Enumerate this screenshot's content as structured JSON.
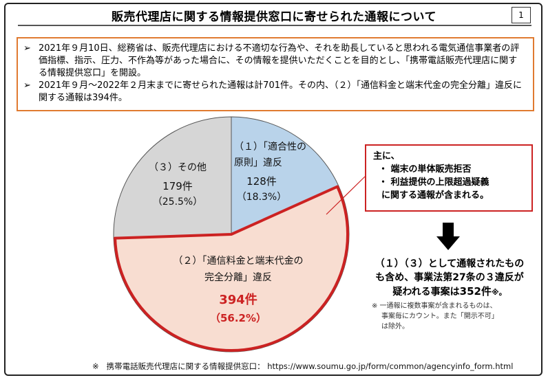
{
  "title": "販売代理店に関する情報提供窓口に寄せられた通報について",
  "page_number": "1",
  "summary": {
    "bullet_marker": "➢",
    "bullets": [
      "2021年９月10日、総務省は、販売代理店における不適切な行為や、それを助長していると思われる電気通信事業者の評価指標、指示、圧力、不作為等があった場合に、その情報を提供いただくことを目的とし、「携帯電話販売代理店に関する情報提供窓口」を開設。",
      "2021年９月～2022年２月末までに寄せられた通報は計701件。その内、（２）「通信料金と端末代金の完全分離」違反に関する通報は394件。"
    ]
  },
  "chart_data": {
    "type": "pie",
    "total": 701,
    "slices": [
      {
        "id": "suitability",
        "label_lines": [
          "（１）「適合性の",
          "原則」違反"
        ],
        "count": 128,
        "count_label": "128件",
        "percent": 18.3,
        "percent_label": "（18.3%）",
        "color": "#b9d3ea"
      },
      {
        "id": "separation",
        "label_lines": [
          "（２）「通信料金と端末代金の",
          "完全分離」違反"
        ],
        "count": 394,
        "count_label": "394件",
        "percent": 56.2,
        "percent_label": "（56.2%）",
        "color": "#f8ddd1",
        "highlight_color": "#cc2222"
      },
      {
        "id": "other",
        "label_lines": [
          "（３）その他"
        ],
        "count": 179,
        "count_label": "179件",
        "percent": 25.5,
        "percent_label": "（25.5%）",
        "color": "#d6d6d6"
      }
    ]
  },
  "callout": {
    "intro": "主に、",
    "items": [
      "・ 端末の単体販売拒否",
      "・ 利益提供の上限超過疑義"
    ],
    "footer": "に関する通報が含まれる。"
  },
  "conclusion": {
    "line1": "（１）（３）として通報されたもの",
    "line2": "も含め、事業法第27条の３違反が",
    "line3_prefix": "疑われる事案は",
    "line3_count": "352件",
    "line3_suffix": "※。"
  },
  "note": {
    "lines": [
      "※ 一通報に複数事案が含まれるものは、",
      "事案毎にカウント。また「開示不可」",
      "は除外。"
    ]
  },
  "footer": {
    "marker": "※",
    "text": "携帯電話販売代理店に関する情報提供窓口： https://www.soumu.go.jp/form/common/agencyinfo_form.html"
  }
}
